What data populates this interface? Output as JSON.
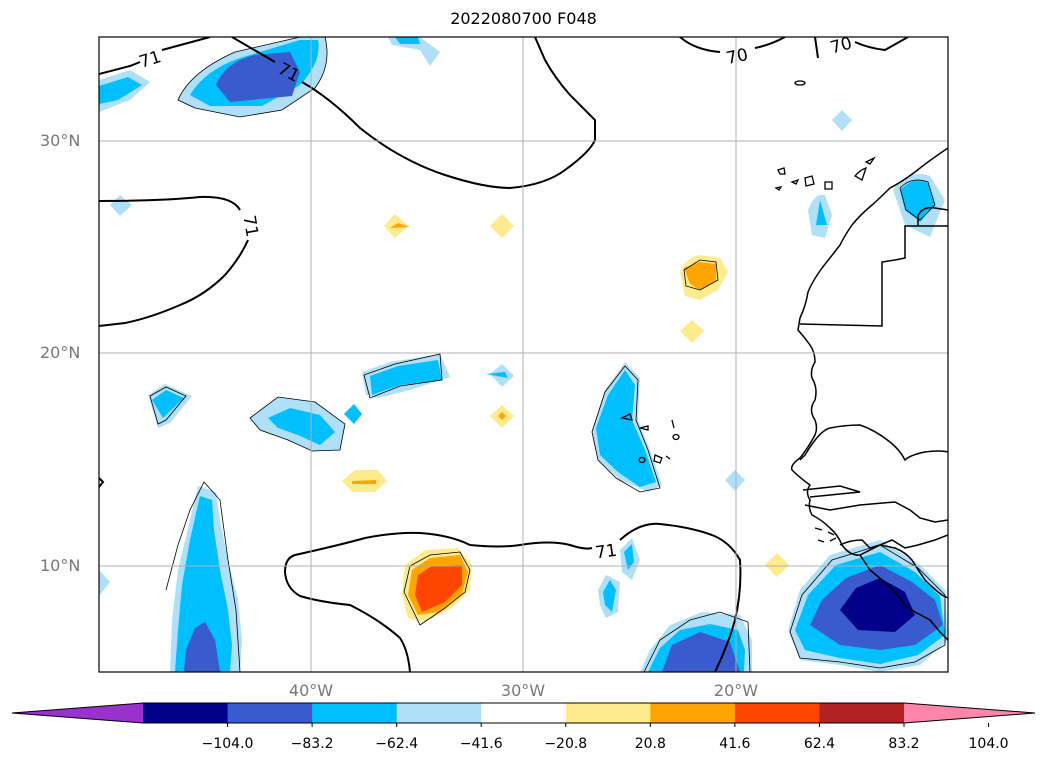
{
  "title": "2022080700 F048",
  "latitude_labels": [
    "30°N",
    "20°N",
    "10°N"
  ],
  "longitude_labels": [
    "40°W",
    "30°W",
    "20°W"
  ],
  "contour_labels": [
    "71",
    "71",
    "71",
    "71",
    "70",
    "70"
  ],
  "colorbar": {
    "ticks": [
      "−104.0",
      "−83.2",
      "−62.4",
      "−41.6",
      "−20.8",
      "20.8",
      "41.6",
      "62.4",
      "83.2",
      "104.0"
    ],
    "colors": [
      "#9932cc",
      "#00008b",
      "#3a5bcd",
      "#00bfff",
      "#afe0f7",
      "#ffffff",
      "#fdeb8e",
      "#ffa500",
      "#ff4500",
      "#b22222",
      "#ff85aa"
    ]
  },
  "extent": {
    "lon_min": -50,
    "lon_max": -10,
    "lat_min": 5,
    "lat_max": 35
  }
}
